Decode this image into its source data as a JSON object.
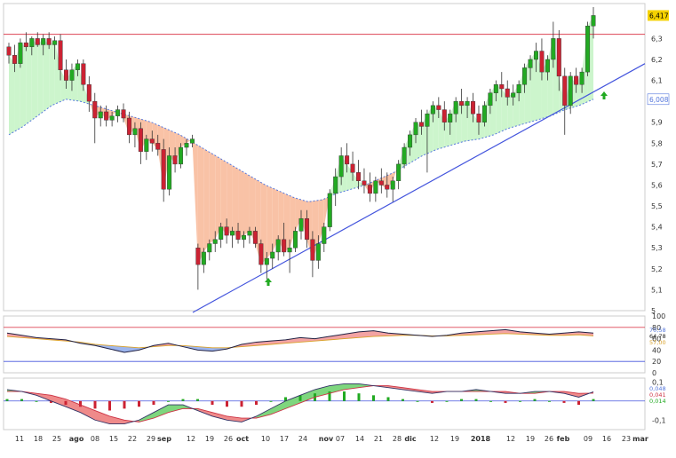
{
  "chart_data": [
    {
      "type": "candlestick",
      "title": "",
      "y_axis_ticks": [
        "6,3",
        "6,2",
        "6,1",
        "6",
        "5,9",
        "5,8",
        "5,7",
        "5,6",
        "5,5",
        "5,4",
        "5,3",
        "5,2",
        "5,1",
        "5"
      ],
      "ylim": [
        5.0,
        6.45
      ],
      "last_price_label": "6,417",
      "moving_average_label": "6,008",
      "resistance_level": 6.32,
      "colors": {
        "up": "#22aa22",
        "down": "#cc2233",
        "ma": "#5577dd",
        "resistance": "#dd4455",
        "trendline": "#4455dd",
        "fill_above": "#ccf5cc",
        "fill_below": "#f9c2a6",
        "label_bg": "#f5d200"
      },
      "candles": [
        {
          "o": 6.26,
          "h": 6.28,
          "l": 6.18,
          "c": 6.22
        },
        {
          "o": 6.22,
          "h": 6.27,
          "l": 6.14,
          "c": 6.18
        },
        {
          "o": 6.18,
          "h": 6.3,
          "l": 6.16,
          "c": 6.28
        },
        {
          "o": 6.28,
          "h": 6.33,
          "l": 6.24,
          "c": 6.26
        },
        {
          "o": 6.26,
          "h": 6.31,
          "l": 6.22,
          "c": 6.3
        },
        {
          "o": 6.3,
          "h": 6.33,
          "l": 6.26,
          "c": 6.27
        },
        {
          "o": 6.27,
          "h": 6.32,
          "l": 6.22,
          "c": 6.3
        },
        {
          "o": 6.3,
          "h": 6.33,
          "l": 6.25,
          "c": 6.27
        },
        {
          "o": 6.27,
          "h": 6.31,
          "l": 6.2,
          "c": 6.29
        },
        {
          "o": 6.29,
          "h": 6.32,
          "l": 6.1,
          "c": 6.15
        },
        {
          "o": 6.15,
          "h": 6.2,
          "l": 6.06,
          "c": 6.1
        },
        {
          "o": 6.1,
          "h": 6.18,
          "l": 6.05,
          "c": 6.15
        },
        {
          "o": 6.15,
          "h": 6.2,
          "l": 6.12,
          "c": 6.18
        },
        {
          "o": 6.18,
          "h": 6.2,
          "l": 6.05,
          "c": 6.08
        },
        {
          "o": 6.08,
          "h": 6.12,
          "l": 5.95,
          "c": 6.0
        },
        {
          "o": 6.0,
          "h": 6.04,
          "l": 5.8,
          "c": 5.92
        },
        {
          "o": 5.92,
          "h": 5.98,
          "l": 5.88,
          "c": 5.95
        },
        {
          "o": 5.95,
          "h": 5.98,
          "l": 5.88,
          "c": 5.91
        },
        {
          "o": 5.91,
          "h": 5.95,
          "l": 5.88,
          "c": 5.93
        },
        {
          "o": 5.93,
          "h": 5.98,
          "l": 5.9,
          "c": 5.96
        },
        {
          "o": 5.96,
          "h": 5.99,
          "l": 5.9,
          "c": 5.92
        },
        {
          "o": 5.92,
          "h": 5.95,
          "l": 5.8,
          "c": 5.84
        },
        {
          "o": 5.84,
          "h": 5.9,
          "l": 5.78,
          "c": 5.87
        },
        {
          "o": 5.87,
          "h": 5.9,
          "l": 5.7,
          "c": 5.76
        },
        {
          "o": 5.76,
          "h": 5.84,
          "l": 5.72,
          "c": 5.82
        },
        {
          "o": 5.82,
          "h": 5.86,
          "l": 5.76,
          "c": 5.8
        },
        {
          "o": 5.8,
          "h": 5.84,
          "l": 5.74,
          "c": 5.77
        },
        {
          "o": 5.77,
          "h": 5.82,
          "l": 5.52,
          "c": 5.58
        },
        {
          "o": 5.58,
          "h": 5.78,
          "l": 5.55,
          "c": 5.74
        },
        {
          "o": 5.74,
          "h": 5.78,
          "l": 5.66,
          "c": 5.7
        },
        {
          "o": 5.7,
          "h": 5.8,
          "l": 5.68,
          "c": 5.78
        },
        {
          "o": 5.78,
          "h": 5.82,
          "l": 5.74,
          "c": 5.8
        },
        {
          "o": 5.8,
          "h": 5.84,
          "l": 5.78,
          "c": 5.82
        },
        {
          "o": 5.3,
          "h": 5.32,
          "l": 5.1,
          "c": 5.22
        },
        {
          "o": 5.22,
          "h": 5.3,
          "l": 5.18,
          "c": 5.28
        },
        {
          "o": 5.28,
          "h": 5.34,
          "l": 5.24,
          "c": 5.32
        },
        {
          "o": 5.32,
          "h": 5.38,
          "l": 5.28,
          "c": 5.34
        },
        {
          "o": 5.34,
          "h": 5.42,
          "l": 5.3,
          "c": 5.4
        },
        {
          "o": 5.4,
          "h": 5.44,
          "l": 5.32,
          "c": 5.36
        },
        {
          "o": 5.36,
          "h": 5.4,
          "l": 5.3,
          "c": 5.38
        },
        {
          "o": 5.38,
          "h": 5.42,
          "l": 5.32,
          "c": 5.34
        },
        {
          "o": 5.34,
          "h": 5.38,
          "l": 5.3,
          "c": 5.36
        },
        {
          "o": 5.36,
          "h": 5.4,
          "l": 5.32,
          "c": 5.38
        },
        {
          "o": 5.38,
          "h": 5.4,
          "l": 5.3,
          "c": 5.32
        },
        {
          "o": 5.32,
          "h": 5.34,
          "l": 5.18,
          "c": 5.22
        },
        {
          "o": 5.22,
          "h": 5.28,
          "l": 5.15,
          "c": 5.25
        },
        {
          "o": 5.25,
          "h": 5.32,
          "l": 5.2,
          "c": 5.28
        },
        {
          "o": 5.28,
          "h": 5.36,
          "l": 5.24,
          "c": 5.34
        },
        {
          "o": 5.34,
          "h": 5.42,
          "l": 5.26,
          "c": 5.28
        },
        {
          "o": 5.28,
          "h": 5.34,
          "l": 5.18,
          "c": 5.3
        },
        {
          "o": 5.3,
          "h": 5.4,
          "l": 5.28,
          "c": 5.38
        },
        {
          "o": 5.38,
          "h": 5.48,
          "l": 5.34,
          "c": 5.44
        },
        {
          "o": 5.44,
          "h": 5.48,
          "l": 5.3,
          "c": 5.34
        },
        {
          "o": 5.34,
          "h": 5.38,
          "l": 5.16,
          "c": 5.24
        },
        {
          "o": 5.24,
          "h": 5.36,
          "l": 5.2,
          "c": 5.32
        },
        {
          "o": 5.32,
          "h": 5.42,
          "l": 5.28,
          "c": 5.4
        },
        {
          "o": 5.4,
          "h": 5.58,
          "l": 5.38,
          "c": 5.56
        },
        {
          "o": 5.56,
          "h": 5.68,
          "l": 5.5,
          "c": 5.64
        },
        {
          "o": 5.64,
          "h": 5.78,
          "l": 5.6,
          "c": 5.74
        },
        {
          "o": 5.74,
          "h": 5.8,
          "l": 5.66,
          "c": 5.7
        },
        {
          "o": 5.7,
          "h": 5.76,
          "l": 5.62,
          "c": 5.66
        },
        {
          "o": 5.66,
          "h": 5.72,
          "l": 5.58,
          "c": 5.62
        },
        {
          "o": 5.62,
          "h": 5.68,
          "l": 5.56,
          "c": 5.6
        },
        {
          "o": 5.6,
          "h": 5.66,
          "l": 5.52,
          "c": 5.56
        },
        {
          "o": 5.56,
          "h": 5.64,
          "l": 5.52,
          "c": 5.62
        },
        {
          "o": 5.62,
          "h": 5.68,
          "l": 5.56,
          "c": 5.6
        },
        {
          "o": 5.6,
          "h": 5.66,
          "l": 5.54,
          "c": 5.58
        },
        {
          "o": 5.58,
          "h": 5.64,
          "l": 5.52,
          "c": 5.62
        },
        {
          "o": 5.62,
          "h": 5.72,
          "l": 5.58,
          "c": 5.7
        },
        {
          "o": 5.7,
          "h": 5.8,
          "l": 5.68,
          "c": 5.78
        },
        {
          "o": 5.78,
          "h": 5.86,
          "l": 5.74,
          "c": 5.84
        },
        {
          "o": 5.84,
          "h": 5.92,
          "l": 5.8,
          "c": 5.9
        },
        {
          "o": 5.9,
          "h": 5.96,
          "l": 5.84,
          "c": 5.88
        },
        {
          "o": 5.88,
          "h": 5.96,
          "l": 5.66,
          "c": 5.94
        },
        {
          "o": 5.94,
          "h": 6.0,
          "l": 5.9,
          "c": 5.98
        },
        {
          "o": 5.98,
          "h": 6.02,
          "l": 5.92,
          "c": 5.96
        },
        {
          "o": 5.96,
          "h": 6.0,
          "l": 5.86,
          "c": 5.9
        },
        {
          "o": 5.9,
          "h": 5.96,
          "l": 5.84,
          "c": 5.94
        },
        {
          "o": 5.94,
          "h": 6.02,
          "l": 5.9,
          "c": 6.0
        },
        {
          "o": 6.0,
          "h": 6.06,
          "l": 5.94,
          "c": 5.98
        },
        {
          "o": 5.98,
          "h": 6.02,
          "l": 5.92,
          "c": 6.0
        },
        {
          "o": 6.0,
          "h": 6.04,
          "l": 5.9,
          "c": 5.94
        },
        {
          "o": 5.94,
          "h": 5.98,
          "l": 5.84,
          "c": 5.9
        },
        {
          "o": 5.9,
          "h": 6.0,
          "l": 5.88,
          "c": 5.98
        },
        {
          "o": 5.98,
          "h": 6.06,
          "l": 5.94,
          "c": 6.04
        },
        {
          "o": 6.04,
          "h": 6.1,
          "l": 6.0,
          "c": 6.08
        },
        {
          "o": 6.08,
          "h": 6.14,
          "l": 6.02,
          "c": 6.06
        },
        {
          "o": 6.06,
          "h": 6.1,
          "l": 5.98,
          "c": 6.02
        },
        {
          "o": 6.02,
          "h": 6.08,
          "l": 5.98,
          "c": 6.04
        },
        {
          "o": 6.04,
          "h": 6.1,
          "l": 6.0,
          "c": 6.08
        },
        {
          "o": 6.08,
          "h": 6.18,
          "l": 6.04,
          "c": 6.16
        },
        {
          "o": 6.16,
          "h": 6.22,
          "l": 6.1,
          "c": 6.2
        },
        {
          "o": 6.2,
          "h": 6.28,
          "l": 6.14,
          "c": 6.24
        },
        {
          "o": 6.24,
          "h": 6.3,
          "l": 6.1,
          "c": 6.14
        },
        {
          "o": 6.14,
          "h": 6.22,
          "l": 6.1,
          "c": 6.2
        },
        {
          "o": 6.2,
          "h": 6.38,
          "l": 6.16,
          "c": 6.3
        },
        {
          "o": 6.3,
          "h": 6.34,
          "l": 6.05,
          "c": 6.12
        },
        {
          "o": 6.12,
          "h": 6.16,
          "l": 5.84,
          "c": 5.98
        },
        {
          "o": 5.98,
          "h": 6.14,
          "l": 5.94,
          "c": 6.12
        },
        {
          "o": 6.12,
          "h": 6.16,
          "l": 6.04,
          "c": 6.08
        },
        {
          "o": 6.08,
          "h": 6.16,
          "l": 6.04,
          "c": 6.14
        },
        {
          "o": 6.14,
          "h": 6.38,
          "l": 6.12,
          "c": 6.36
        },
        {
          "o": 6.36,
          "h": 6.45,
          "l": 6.3,
          "c": 6.41
        }
      ],
      "moving_average": [
        5.84,
        5.88,
        5.93,
        5.98,
        6.01,
        6.0,
        5.98,
        5.96,
        5.94,
        5.92,
        5.9,
        5.87,
        5.84,
        5.8,
        5.76,
        5.72,
        5.68,
        5.64,
        5.6,
        5.57,
        5.54,
        5.52,
        5.53,
        5.56,
        5.58,
        5.6,
        5.63,
        5.66,
        5.7,
        5.74,
        5.77,
        5.79,
        5.81,
        5.82,
        5.84,
        5.87,
        5.89,
        5.91,
        5.93,
        5.96,
        5.98,
        6.01
      ],
      "trendline": {
        "start": [
          35,
          5.0
        ],
        "end": [
          101,
          6.16
        ]
      }
    },
    {
      "type": "line",
      "y_axis_ticks": [
        "100",
        "80",
        "60",
        "40",
        "20",
        "0"
      ],
      "ylim": [
        0,
        100
      ],
      "value_labels": [
        "70,58",
        "64,78",
        "57,00"
      ],
      "reference_lines": [
        80,
        20
      ],
      "series": [
        {
          "values": [
            70,
            66,
            62,
            60,
            58,
            52,
            48,
            42,
            36,
            40,
            48,
            52,
            46,
            40,
            38,
            42,
            50,
            54,
            56,
            58,
            62,
            60,
            64,
            68,
            72,
            74,
            70,
            68,
            66,
            64,
            66,
            70,
            72,
            74,
            76,
            72,
            70,
            68,
            70,
            72,
            70
          ]
        },
        {
          "values": [
            64,
            62,
            60,
            58,
            56,
            54,
            50,
            48,
            46,
            44,
            46,
            48,
            48,
            46,
            44,
            44,
            46,
            48,
            50,
            52,
            54,
            56,
            58,
            60,
            62,
            64,
            65,
            66,
            66,
            65,
            65,
            66,
            67,
            68,
            69,
            68,
            67,
            66,
            66,
            67,
            65
          ]
        }
      ]
    },
    {
      "type": "bar",
      "y_axis_ticks": [
        "0,1",
        "-0,1"
      ],
      "ylim": [
        -0.15,
        0.12
      ],
      "value_labels": [
        "0,048",
        "0,041",
        "0,014"
      ],
      "histogram": [
        0.01,
        0.01,
        0.0,
        -0.01,
        -0.02,
        -0.03,
        -0.04,
        -0.05,
        -0.04,
        -0.03,
        -0.02,
        0.0,
        0.01,
        0.01,
        -0.02,
        -0.03,
        -0.03,
        -0.02,
        0.0,
        0.02,
        0.03,
        0.04,
        0.05,
        0.05,
        0.04,
        0.03,
        0.02,
        0.01,
        0.0,
        -0.01,
        0.0,
        0.01,
        0.01,
        0.0,
        -0.01,
        0.0,
        0.01,
        0.0,
        -0.01,
        -0.02,
        0.01
      ],
      "macd": [
        0.06,
        0.05,
        0.03,
        0.0,
        -0.03,
        -0.06,
        -0.1,
        -0.12,
        -0.12,
        -0.1,
        -0.06,
        -0.02,
        -0.02,
        -0.05,
        -0.08,
        -0.1,
        -0.11,
        -0.08,
        -0.04,
        0.0,
        0.03,
        0.06,
        0.08,
        0.09,
        0.09,
        0.08,
        0.07,
        0.06,
        0.05,
        0.04,
        0.05,
        0.05,
        0.06,
        0.05,
        0.04,
        0.04,
        0.05,
        0.05,
        0.04,
        0.02,
        0.048
      ],
      "signal": [
        0.05,
        0.05,
        0.04,
        0.03,
        0.01,
        -0.02,
        -0.05,
        -0.08,
        -0.1,
        -0.11,
        -0.09,
        -0.06,
        -0.04,
        -0.04,
        -0.06,
        -0.08,
        -0.09,
        -0.09,
        -0.07,
        -0.04,
        -0.01,
        0.02,
        0.04,
        0.06,
        0.07,
        0.08,
        0.08,
        0.07,
        0.06,
        0.05,
        0.05,
        0.05,
        0.05,
        0.05,
        0.05,
        0.04,
        0.04,
        0.05,
        0.05,
        0.04,
        0.041
      ]
    }
  ],
  "x_axis_labels": [
    "11",
    "18",
    "25",
    "ago",
    "08",
    "15",
    "22",
    "29",
    "sep",
    "12",
    "19",
    "26",
    "oct",
    "10",
    "17",
    "24",
    "nov",
    "07",
    "14",
    "21",
    "28",
    "dic",
    "12",
    "19",
    "2018",
    "12",
    "19",
    "26",
    "feb",
    "09",
    "16",
    "23",
    "mar"
  ]
}
